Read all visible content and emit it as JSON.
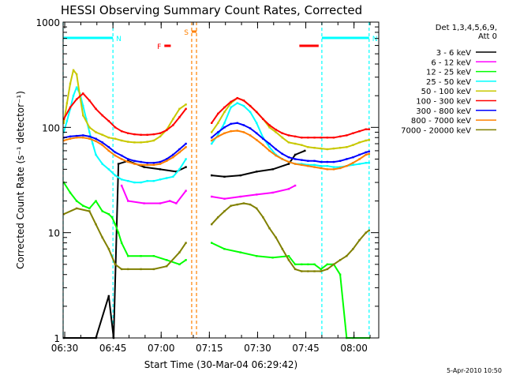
{
  "chart_data": {
    "type": "line",
    "title": "HESSI Observing Summary Count Rates, Corrected",
    "xlabel": "Start Time (30-Mar-04 06:29:42)",
    "ylabel": "Corrected Count Rate (s⁻¹ detector⁻¹)",
    "yscale": "log",
    "ylim": [
      1,
      1000
    ],
    "xlim_minutes": [
      -0.2,
      98
    ],
    "x_tick_labels": [
      "06:30",
      "06:45",
      "07:00",
      "07:15",
      "07:30",
      "07:45",
      "08:00"
    ],
    "x_tick_minutes": [
      0.3,
      15.3,
      30.3,
      45.3,
      60.3,
      75.3,
      90.3
    ],
    "y_tick_labels": [
      "1",
      "10",
      "100",
      "1000"
    ],
    "y_tick_values": [
      1,
      10,
      100,
      1000
    ],
    "grid": false,
    "legend_position": "right",
    "legend_header": [
      "Det 1,3,4,5,6,9,",
      "Att 0"
    ],
    "series": [
      {
        "name": "3 - 6 keV",
        "color": "#000000",
        "x": [
          0,
          10,
          14,
          15.5,
          17,
          20,
          25,
          30,
          35,
          38,
          40,
          44,
          46,
          50,
          55,
          60,
          65,
          70,
          72,
          75,
          80,
          85,
          90,
          95
        ],
        "y": [
          1,
          1,
          2.5,
          1,
          45,
          48,
          42,
          40,
          38,
          42,
          null,
          null,
          35,
          34,
          35,
          38,
          40,
          45,
          55,
          60,
          null,
          null,
          null,
          null
        ]
      },
      {
        "name": "6 - 12 keV",
        "color": "#ff00ff",
        "x": [
          0,
          10,
          15,
          16.5,
          18,
          20,
          25,
          30,
          33,
          35,
          38,
          40,
          44,
          46,
          50,
          55,
          60,
          65,
          70,
          72,
          75,
          80,
          85,
          90,
          95
        ],
        "y": [
          null,
          null,
          null,
          null,
          28,
          20,
          19,
          19,
          20,
          19,
          25,
          null,
          null,
          22,
          21,
          22,
          23,
          24,
          26,
          28,
          null,
          null,
          null,
          null,
          null
        ]
      },
      {
        "name": "12 - 25 keV",
        "color": "#00ff00",
        "x": [
          0,
          2,
          4,
          6,
          8,
          10,
          12,
          14,
          15,
          16,
          17,
          18,
          20,
          24,
          28,
          32,
          36,
          38,
          40,
          44,
          46,
          50,
          55,
          60,
          65,
          70,
          72,
          74,
          76,
          78,
          80,
          82,
          84,
          86,
          88,
          90,
          95
        ],
        "y": [
          30,
          24,
          20,
          18,
          17,
          20,
          16,
          15,
          14,
          12,
          10,
          8,
          6,
          6,
          6,
          5.5,
          5,
          5.5,
          null,
          null,
          8,
          7,
          6.5,
          6,
          5.8,
          6,
          5,
          5,
          5,
          5,
          4.5,
          5,
          5,
          4,
          1,
          1,
          1
        ]
      },
      {
        "name": "25 - 50 keV",
        "color": "#00ffff",
        "x": [
          0,
          1,
          2,
          3,
          4,
          5,
          6,
          7,
          8,
          9,
          10,
          12,
          14,
          16,
          18,
          20,
          22,
          24,
          26,
          28,
          30,
          32,
          34,
          36,
          38,
          40,
          44,
          46,
          48,
          50,
          52,
          54,
          56,
          58,
          60,
          62,
          64,
          66,
          68,
          70,
          72,
          74,
          76,
          78,
          80,
          82,
          84,
          86,
          88,
          90,
          92,
          94,
          95
        ],
        "y": [
          90,
          115,
          150,
          200,
          240,
          210,
          160,
          120,
          90,
          70,
          55,
          45,
          40,
          35,
          32,
          31,
          30,
          30,
          31,
          31,
          32,
          33,
          34,
          40,
          50,
          null,
          null,
          70,
          85,
          110,
          155,
          170,
          160,
          140,
          110,
          80,
          65,
          55,
          50,
          47,
          45,
          45,
          44,
          44,
          43,
          43,
          42,
          42,
          43,
          44,
          45,
          46,
          46
        ]
      },
      {
        "name": "50 - 100 keV",
        "color": "#c8c800",
        "x": [
          0,
          1,
          2,
          3,
          4,
          5,
          6,
          8,
          10,
          12,
          14,
          16,
          18,
          20,
          22,
          24,
          26,
          28,
          30,
          32,
          34,
          36,
          38,
          40,
          44,
          46,
          48,
          50,
          52,
          54,
          56,
          58,
          60,
          62,
          64,
          66,
          68,
          70,
          72,
          74,
          76,
          78,
          80,
          82,
          84,
          86,
          88,
          90,
          92,
          94,
          95
        ],
        "y": [
          110,
          170,
          260,
          350,
          320,
          200,
          130,
          100,
          90,
          85,
          80,
          78,
          75,
          73,
          72,
          72,
          73,
          75,
          82,
          95,
          120,
          150,
          165,
          null,
          null,
          90,
          110,
          140,
          170,
          190,
          180,
          160,
          140,
          120,
          100,
          90,
          80,
          72,
          70,
          68,
          65,
          64,
          63,
          62,
          63,
          64,
          65,
          68,
          72,
          75,
          76
        ]
      },
      {
        "name": "100 - 300 keV",
        "color": "#ff0000",
        "x": [
          0,
          2,
          4,
          6,
          8,
          10,
          12,
          14,
          16,
          18,
          20,
          22,
          24,
          26,
          28,
          30,
          32,
          34,
          36,
          38,
          40,
          44,
          46,
          48,
          50,
          52,
          54,
          56,
          58,
          60,
          62,
          64,
          66,
          68,
          70,
          72,
          74,
          76,
          78,
          80,
          82,
          84,
          86,
          88,
          90,
          92,
          94,
          95
        ],
        "y": [
          120,
          155,
          185,
          210,
          180,
          150,
          130,
          115,
          100,
          92,
          88,
          86,
          85,
          85,
          86,
          88,
          94,
          105,
          125,
          150,
          null,
          null,
          110,
          135,
          155,
          175,
          190,
          180,
          160,
          140,
          120,
          105,
          95,
          88,
          84,
          82,
          80,
          80,
          80,
          80,
          80,
          80,
          82,
          84,
          88,
          92,
          96,
          96
        ]
      },
      {
        "name": "300 - 800 keV",
        "color": "#0000ff",
        "x": [
          0,
          2,
          4,
          6,
          8,
          10,
          12,
          14,
          16,
          18,
          20,
          22,
          24,
          26,
          28,
          30,
          32,
          34,
          36,
          38,
          40,
          44,
          46,
          48,
          50,
          52,
          54,
          56,
          58,
          60,
          62,
          64,
          66,
          68,
          70,
          72,
          74,
          76,
          78,
          80,
          82,
          84,
          86,
          88,
          90,
          92,
          94,
          95
        ],
        "y": [
          80,
          82,
          83,
          84,
          82,
          78,
          72,
          65,
          58,
          54,
          50,
          48,
          47,
          46,
          46,
          47,
          50,
          55,
          62,
          70,
          null,
          null,
          80,
          90,
          100,
          108,
          110,
          105,
          98,
          88,
          78,
          70,
          62,
          56,
          52,
          50,
          49,
          48,
          48,
          47,
          47,
          47,
          48,
          50,
          52,
          55,
          58,
          59
        ]
      },
      {
        "name": "800 - 7000 keV",
        "color": "#ff8000",
        "x": [
          0,
          2,
          4,
          6,
          8,
          10,
          12,
          14,
          16,
          18,
          20,
          22,
          24,
          26,
          28,
          30,
          32,
          34,
          36,
          38,
          40,
          44,
          46,
          48,
          50,
          52,
          54,
          56,
          58,
          60,
          62,
          64,
          66,
          68,
          70,
          72,
          74,
          76,
          78,
          80,
          82,
          84,
          86,
          88,
          90,
          92,
          94,
          95
        ],
        "y": [
          75,
          78,
          80,
          80,
          78,
          74,
          68,
          60,
          54,
          50,
          47,
          45,
          44,
          44,
          44,
          45,
          48,
          52,
          58,
          65,
          null,
          null,
          75,
          82,
          88,
          92,
          93,
          90,
          84,
          76,
          68,
          60,
          54,
          50,
          47,
          45,
          44,
          43,
          42,
          41,
          40,
          40,
          41,
          43,
          46,
          50,
          55,
          56
        ]
      },
      {
        "name": "7000 - 20000 keV",
        "color": "#808000",
        "x": [
          0,
          4,
          8,
          10,
          12,
          14,
          16,
          18,
          20,
          24,
          28,
          32,
          36,
          38,
          40,
          44,
          46,
          48,
          50,
          52,
          54,
          56,
          58,
          60,
          62,
          64,
          66,
          68,
          70,
          72,
          74,
          76,
          78,
          80,
          82,
          84,
          86,
          88,
          90,
          92,
          94,
          95
        ],
        "y": [
          15,
          17,
          16,
          12,
          9,
          7,
          5,
          4.5,
          4.5,
          4.5,
          4.5,
          4.8,
          6.5,
          8,
          null,
          null,
          12,
          14,
          16,
          18,
          18.5,
          19,
          18.5,
          17,
          14,
          11,
          9,
          7,
          5.5,
          4.5,
          4.3,
          4.3,
          4.3,
          4.3,
          4.5,
          5,
          5.5,
          6,
          7,
          8.5,
          10,
          10.5
        ]
      }
    ],
    "intervals": [
      {
        "label": "N",
        "color": "#00ffff",
        "x_start": -0.2,
        "x_end": 15.3
      },
      {
        "label": "N",
        "color": "#00ffff",
        "x_start": 80.3,
        "x_end": 95
      },
      {
        "label": "F",
        "color": "#ff0000",
        "x_start": 31.3,
        "x_end": 33.3
      },
      {
        "label": "S",
        "color": "#ff8000",
        "x_start": 39.8,
        "x_end": 41.3
      },
      {
        "label": "",
        "color": "#ff0000",
        "x_start": 73.3,
        "x_end": 79.3
      }
    ]
  },
  "footer": {
    "timestamp": "5-Apr-2010 10:50"
  },
  "colors": {
    "background": "#ffffff",
    "axis": "#000000"
  }
}
